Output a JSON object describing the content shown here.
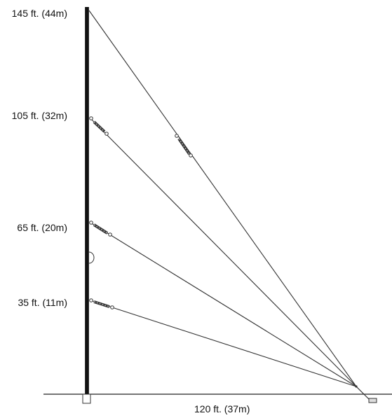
{
  "heights": [
    {
      "key": "h145",
      "label": "145 ft. (44m)"
    },
    {
      "key": "h105",
      "label": "105 ft. (32m)"
    },
    {
      "key": "h65",
      "label": "65 ft. (20m)"
    },
    {
      "key": "h35",
      "label": "35 ft. (11m)"
    }
  ],
  "distance_label": "120 ft. (37m)",
  "colors": {
    "line": "#333333",
    "mast": "#111111",
    "background": "#ffffff"
  }
}
